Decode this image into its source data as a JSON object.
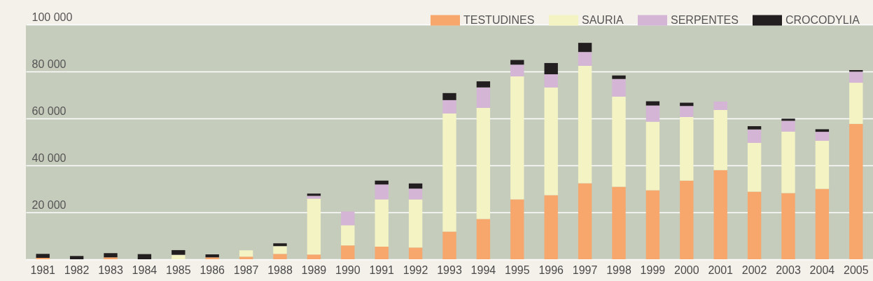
{
  "chart_data": {
    "type": "bar",
    "stacked": true,
    "categories": [
      "1981",
      "1982",
      "1983",
      "1984",
      "1985",
      "1986",
      "1987",
      "1988",
      "1989",
      "1990",
      "1991",
      "1992",
      "1993",
      "1994",
      "1995",
      "1996",
      "1997",
      "1998",
      "1999",
      "2000",
      "2001",
      "2002",
      "2003",
      "2004",
      "2005"
    ],
    "series": [
      {
        "name": "TESTUDINES",
        "color": "#f7a66c",
        "values": [
          600,
          null,
          800,
          null,
          null,
          800,
          1100,
          2300,
          2000,
          5900,
          5400,
          5000,
          11800,
          17200,
          25500,
          27300,
          32400,
          30900,
          29400,
          33500,
          38000,
          28800,
          28200,
          30000,
          57700
        ]
      },
      {
        "name": "SAURIA",
        "color": "#f4f3c4",
        "values": [
          null,
          null,
          null,
          null,
          1900,
          null,
          2700,
          3300,
          23800,
          8600,
          20100,
          20500,
          50300,
          47300,
          52400,
          45900,
          50000,
          38400,
          29200,
          27100,
          25600,
          20800,
          26200,
          20500,
          17500
        ]
      },
      {
        "name": "SERPENTES",
        "color": "#d4b5d6",
        "values": [
          null,
          null,
          null,
          null,
          null,
          null,
          null,
          null,
          1200,
          5900,
          6400,
          4600,
          5700,
          8700,
          5000,
          5600,
          5900,
          7500,
          6900,
          4700,
          3600,
          5700,
          4600,
          3800,
          4700
        ]
      },
      {
        "name": "CROCODYLIA",
        "color": "#231f20",
        "values": [
          1700,
          1400,
          1800,
          2200,
          2000,
          1300,
          null,
          1200,
          1000,
          null,
          1600,
          2200,
          3000,
          2600,
          2000,
          4800,
          3900,
          1500,
          1800,
          1400,
          null,
          1400,
          900,
          1100,
          700
        ]
      }
    ],
    "ylim": [
      0,
      100000
    ],
    "yticks": [
      {
        "value": 0,
        "label": null
      },
      {
        "value": 20000,
        "label": "20 000"
      },
      {
        "value": 40000,
        "label": "40 000"
      },
      {
        "value": 60000,
        "label": "60 000"
      },
      {
        "value": 80000,
        "label": "80 000"
      },
      {
        "value": 100000,
        "label": "100 000"
      }
    ],
    "grid": "y",
    "legend": "top right"
  }
}
